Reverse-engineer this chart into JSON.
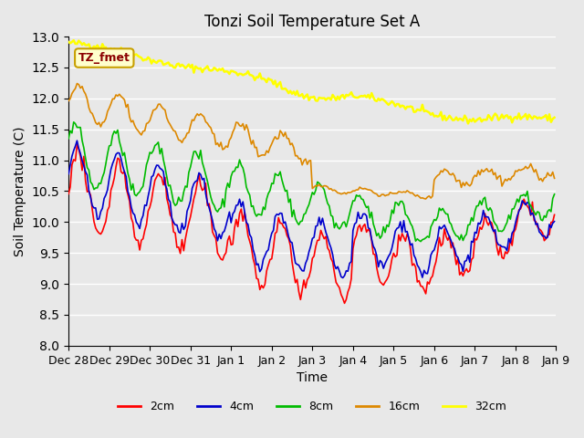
{
  "title": "Tonzi Soil Temperature Set A",
  "xlabel": "Time",
  "ylabel": "Soil Temperature (C)",
  "ylim": [
    8.0,
    13.0
  ],
  "yticks": [
    8.0,
    8.5,
    9.0,
    9.5,
    10.0,
    10.5,
    11.0,
    11.5,
    12.0,
    12.5,
    13.0
  ],
  "background_color": "#e8e8e8",
  "label_box_text": "TZ_fmet",
  "label_box_bg": "#ffffcc",
  "label_box_edge": "#c8a000",
  "colors": {
    "2cm": "#ff0000",
    "4cm": "#0000cc",
    "8cm": "#00bb00",
    "16cm": "#dd8800",
    "32cm": "#ffff00"
  },
  "n_points": 288,
  "xtick_positions": [
    0,
    24,
    48,
    72,
    96,
    120,
    144,
    168,
    192,
    216,
    240,
    264,
    288
  ],
  "xtick_labels": [
    "Dec 28",
    "Dec 29",
    "Dec 30",
    "Dec 31",
    "Jan 1",
    "Jan 2",
    "Jan 3",
    "Jan 4",
    "Jan 5",
    "Jan 6",
    "Jan 7",
    "Jan 8",
    "Jan 9"
  ]
}
